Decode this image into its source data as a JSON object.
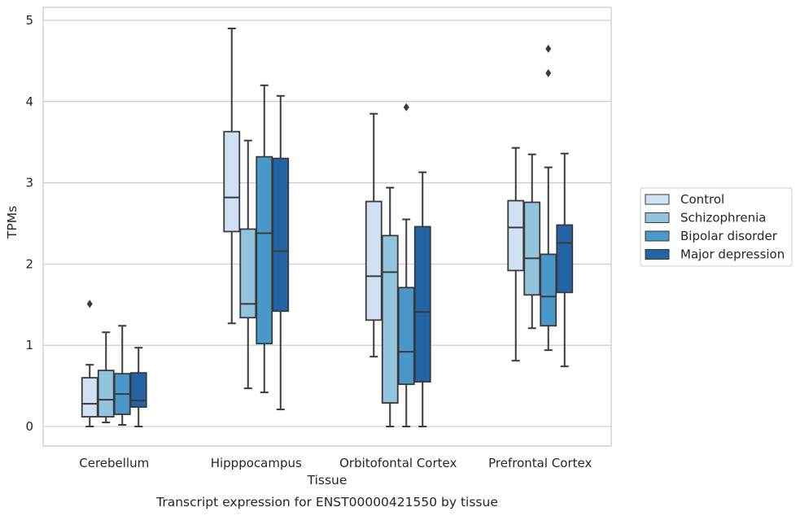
{
  "chart_data": {
    "type": "box",
    "xlabel": "Tissue",
    "ylabel": "TPMs",
    "caption": "Transcript expression for ENST00000421550 by tissue",
    "ylim": [
      -0.24,
      5.16
    ],
    "yticks": [
      0,
      1,
      2,
      3,
      4,
      5
    ],
    "grid": true,
    "legend": {
      "position": "right"
    },
    "categories": [
      "Cerebellum",
      "Hipppocampus",
      "Orbitofontal Cortex",
      "Prefrontal Cortex"
    ],
    "series": [
      {
        "name": "Control",
        "color": "#cfe1f2",
        "boxes": [
          {
            "whislo": 0.0,
            "q1": 0.12,
            "med": 0.28,
            "q3": 0.6,
            "whishi": 0.76,
            "fliers": [
              1.51
            ]
          },
          {
            "whislo": 1.27,
            "q1": 2.4,
            "med": 2.82,
            "q3": 3.63,
            "whishi": 4.9,
            "fliers": []
          },
          {
            "whislo": 0.86,
            "q1": 1.31,
            "med": 1.85,
            "q3": 2.77,
            "whishi": 3.85,
            "fliers": []
          },
          {
            "whislo": 0.81,
            "q1": 1.92,
            "med": 2.45,
            "q3": 2.78,
            "whishi": 3.43,
            "fliers": []
          }
        ]
      },
      {
        "name": "Schizophrenia",
        "color": "#93c4de",
        "boxes": [
          {
            "whislo": 0.05,
            "q1": 0.12,
            "med": 0.33,
            "q3": 0.69,
            "whishi": 1.16,
            "fliers": []
          },
          {
            "whislo": 0.47,
            "q1": 1.34,
            "med": 1.51,
            "q3": 2.43,
            "whishi": 3.52,
            "fliers": []
          },
          {
            "whislo": 0.0,
            "q1": 0.29,
            "med": 1.9,
            "q3": 2.35,
            "whishi": 2.94,
            "fliers": []
          },
          {
            "whislo": 1.21,
            "q1": 1.62,
            "med": 2.07,
            "q3": 2.76,
            "whishi": 3.35,
            "fliers": []
          }
        ]
      },
      {
        "name": "Bipolar disorder",
        "color": "#4a98c9",
        "boxes": [
          {
            "whislo": 0.02,
            "q1": 0.15,
            "med": 0.4,
            "q3": 0.65,
            "whishi": 1.24,
            "fliers": []
          },
          {
            "whislo": 0.42,
            "q1": 1.02,
            "med": 2.38,
            "q3": 3.32,
            "whishi": 4.2,
            "fliers": []
          },
          {
            "whislo": 0.0,
            "q1": 0.52,
            "med": 0.92,
            "q3": 1.71,
            "whishi": 2.55,
            "fliers": [
              3.93
            ]
          },
          {
            "whislo": 0.94,
            "q1": 1.24,
            "med": 1.6,
            "q3": 2.12,
            "whishi": 3.19,
            "fliers": [
              4.35,
              4.65
            ]
          }
        ]
      },
      {
        "name": "Major depression",
        "color": "#2264a6",
        "boxes": [
          {
            "whislo": 0.0,
            "q1": 0.24,
            "med": 0.32,
            "q3": 0.66,
            "whishi": 0.97,
            "fliers": []
          },
          {
            "whislo": 0.21,
            "q1": 1.42,
            "med": 2.16,
            "q3": 3.3,
            "whishi": 4.07,
            "fliers": []
          },
          {
            "whislo": 0.0,
            "q1": 0.55,
            "med": 1.41,
            "q3": 2.46,
            "whishi": 3.13,
            "fliers": []
          },
          {
            "whislo": 0.74,
            "q1": 1.65,
            "med": 2.26,
            "q3": 2.48,
            "whishi": 3.36,
            "fliers": []
          }
        ]
      }
    ]
  }
}
